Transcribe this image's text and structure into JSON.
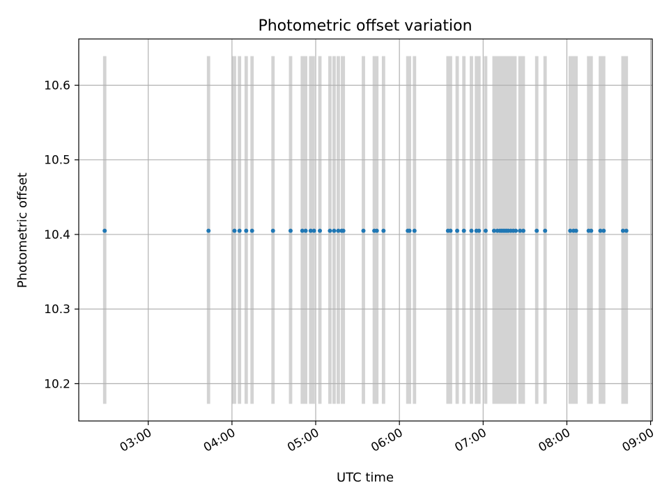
{
  "chart_data": {
    "type": "scatter",
    "title": "Photometric offset variation",
    "xlabel": "UTC time",
    "ylabel": "Photometric offset",
    "x_unit": "UTC time (hours)",
    "xlim": [
      2.17,
      9.02
    ],
    "ylim": [
      10.15,
      10.662
    ],
    "grid": true,
    "x_ticks": [
      {
        "value": 3,
        "label": "03:00"
      },
      {
        "value": 4,
        "label": "04:00"
      },
      {
        "value": 5,
        "label": "05:00"
      },
      {
        "value": 6,
        "label": "06:00"
      },
      {
        "value": 7,
        "label": "07:00"
      },
      {
        "value": 8,
        "label": "08:00"
      },
      {
        "value": 9,
        "label": "09:00"
      }
    ],
    "y_ticks": [
      {
        "value": 10.2,
        "label": "10.2"
      },
      {
        "value": 10.3,
        "label": "10.3"
      },
      {
        "value": 10.4,
        "label": "10.4"
      },
      {
        "value": 10.5,
        "label": "10.5"
      },
      {
        "value": 10.6,
        "label": "10.6"
      }
    ],
    "series": [
      {
        "color": "#1f77b4",
        "x": [
          2.48,
          3.72,
          4.03,
          4.09,
          4.17,
          4.24,
          4.49,
          4.7,
          4.84,
          4.88,
          4.94,
          4.98,
          5.05,
          5.17,
          5.22,
          5.27,
          5.31,
          5.33,
          5.57,
          5.7,
          5.73,
          5.81,
          6.1,
          6.12,
          6.18,
          6.58,
          6.61,
          6.69,
          6.77,
          6.86,
          6.92,
          6.95,
          7.03,
          7.13,
          7.17,
          7.2,
          7.22,
          7.24,
          7.26,
          7.28,
          7.3,
          7.33,
          7.36,
          7.39,
          7.44,
          7.48,
          7.64,
          7.74,
          8.04,
          8.08,
          8.11,
          8.26,
          8.29,
          8.4,
          8.44,
          8.67,
          8.71
        ],
        "y": [
          10.405,
          10.405,
          10.405,
          10.405,
          10.405,
          10.405,
          10.405,
          10.405,
          10.405,
          10.405,
          10.405,
          10.405,
          10.405,
          10.405,
          10.405,
          10.405,
          10.405,
          10.405,
          10.405,
          10.405,
          10.405,
          10.405,
          10.405,
          10.405,
          10.405,
          10.405,
          10.405,
          10.405,
          10.405,
          10.405,
          10.405,
          10.405,
          10.405,
          10.405,
          10.405,
          10.405,
          10.405,
          10.405,
          10.405,
          10.405,
          10.405,
          10.405,
          10.405,
          10.405,
          10.405,
          10.405,
          10.405,
          10.405,
          10.405,
          10.405,
          10.405,
          10.405,
          10.405,
          10.405,
          10.405,
          10.405,
          10.405
        ]
      }
    ],
    "spans": {
      "color": "#d3d3d3",
      "y_range": [
        10.173,
        10.639
      ],
      "intervals": [
        [
          2.46,
          2.5
        ],
        [
          3.7,
          3.74
        ],
        [
          4.0,
          4.05
        ],
        [
          4.07,
          4.11
        ],
        [
          4.15,
          4.19
        ],
        [
          4.22,
          4.26
        ],
        [
          4.47,
          4.51
        ],
        [
          4.68,
          4.72
        ],
        [
          4.82,
          4.9
        ],
        [
          4.92,
          4.99
        ],
        [
          5.03,
          5.07
        ],
        [
          5.15,
          5.19
        ],
        [
          5.2,
          5.24
        ],
        [
          5.25,
          5.29
        ],
        [
          5.3,
          5.35
        ],
        [
          5.55,
          5.59
        ],
        [
          5.68,
          5.75
        ],
        [
          5.79,
          5.83
        ],
        [
          6.08,
          6.14
        ],
        [
          6.16,
          6.2
        ],
        [
          6.56,
          6.63
        ],
        [
          6.67,
          6.71
        ],
        [
          6.75,
          6.79
        ],
        [
          6.84,
          6.88
        ],
        [
          6.9,
          6.97
        ],
        [
          7.01,
          7.05
        ],
        [
          7.11,
          7.4
        ],
        [
          7.42,
          7.5
        ],
        [
          7.62,
          7.66
        ],
        [
          7.72,
          7.76
        ],
        [
          8.02,
          8.13
        ],
        [
          8.24,
          8.31
        ],
        [
          8.38,
          8.46
        ],
        [
          8.65,
          8.73
        ]
      ]
    }
  }
}
